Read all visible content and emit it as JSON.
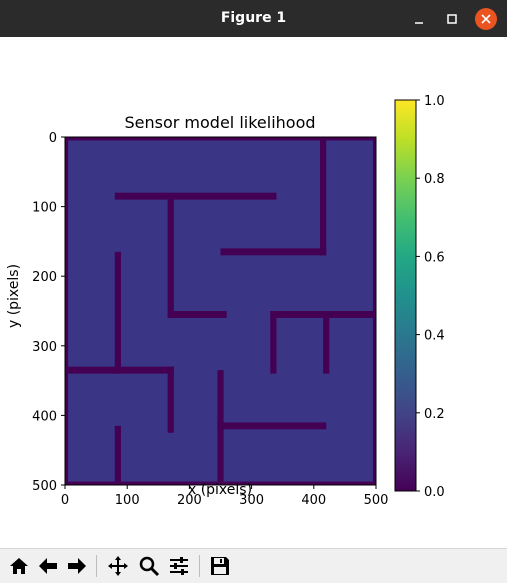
{
  "window": {
    "title": "Figure 1",
    "controls": {
      "minimize": "minimize-icon",
      "maximize": "maximize-icon",
      "close": "close-icon"
    }
  },
  "chart_data": {
    "type": "heatmap",
    "title": "Sensor model likelihood",
    "xlabel": "x (pixels)",
    "ylabel": "y (pixels)",
    "xlim": [
      0,
      500
    ],
    "ylim": [
      500,
      0
    ],
    "x_ticks": [
      "0",
      "100",
      "200",
      "300",
      "400",
      "500"
    ],
    "y_ticks": [
      "0",
      "100",
      "200",
      "300",
      "400",
      "500"
    ],
    "colormap": "viridis",
    "colorbar": {
      "range": [
        0,
        1
      ],
      "ticks": [
        "0.0",
        "0.2",
        "0.4",
        "0.6",
        "0.8",
        "1.0"
      ],
      "placement": "right"
    },
    "background_value": 0.15,
    "wall_value": 0.0,
    "wall_thickness": 10,
    "walls": [
      {
        "x1": 0,
        "y1": 0,
        "x2": 500,
        "y2": 0
      },
      {
        "x1": 0,
        "y1": 500,
        "x2": 500,
        "y2": 500
      },
      {
        "x1": 0,
        "y1": 0,
        "x2": 0,
        "y2": 500
      },
      {
        "x1": 500,
        "y1": 0,
        "x2": 500,
        "y2": 500
      },
      {
        "x1": 415,
        "y1": 0,
        "x2": 415,
        "y2": 165
      },
      {
        "x1": 85,
        "y1": 85,
        "x2": 335,
        "y2": 85
      },
      {
        "x1": 170,
        "y1": 90,
        "x2": 170,
        "y2": 255
      },
      {
        "x1": 170,
        "y1": 255,
        "x2": 255,
        "y2": 255
      },
      {
        "x1": 255,
        "y1": 165,
        "x2": 415,
        "y2": 165
      },
      {
        "x1": 85,
        "y1": 170,
        "x2": 85,
        "y2": 335
      },
      {
        "x1": 0,
        "y1": 335,
        "x2": 170,
        "y2": 335
      },
      {
        "x1": 170,
        "y1": 335,
        "x2": 170,
        "y2": 420
      },
      {
        "x1": 335,
        "y1": 255,
        "x2": 500,
        "y2": 255
      },
      {
        "x1": 335,
        "y1": 255,
        "x2": 335,
        "y2": 335
      },
      {
        "x1": 420,
        "y1": 255,
        "x2": 420,
        "y2": 335
      },
      {
        "x1": 250,
        "y1": 340,
        "x2": 250,
        "y2": 500
      },
      {
        "x1": 250,
        "y1": 415,
        "x2": 415,
        "y2": 415
      },
      {
        "x1": 85,
        "y1": 420,
        "x2": 85,
        "y2": 500
      }
    ]
  },
  "toolbar": {
    "buttons": [
      {
        "name": "home-button",
        "icon": "home-icon"
      },
      {
        "name": "back-button",
        "icon": "arrow-left-icon"
      },
      {
        "name": "forward-button",
        "icon": "arrow-right-icon"
      },
      {
        "name": "pan-button",
        "icon": "move-icon"
      },
      {
        "name": "zoom-button",
        "icon": "magnifier-icon"
      },
      {
        "name": "configure-subplots-button",
        "icon": "sliders-icon"
      },
      {
        "name": "save-button",
        "icon": "floppy-disk-icon"
      }
    ]
  }
}
